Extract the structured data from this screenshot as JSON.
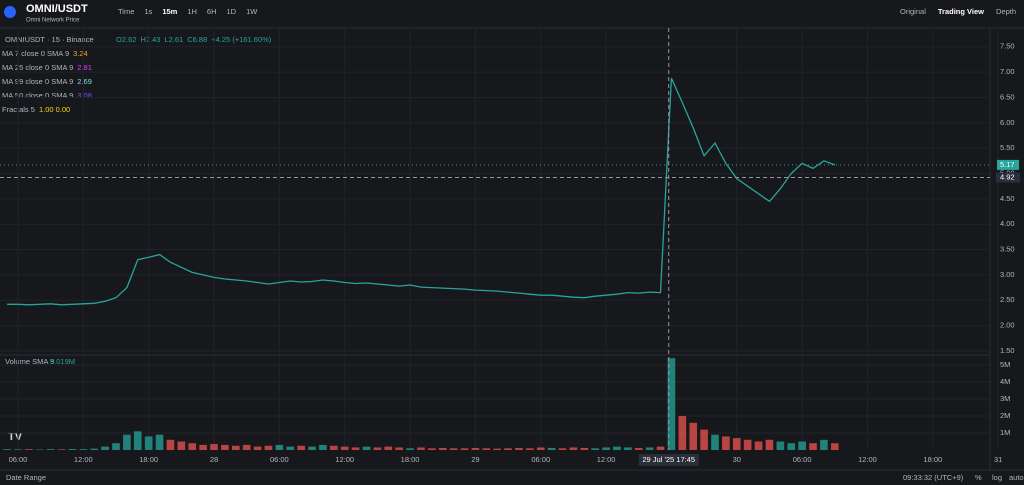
{
  "ui": {
    "pair": "OMNI/USDT",
    "subtitle": "Omni Network Price",
    "intervals": [
      "Time",
      "1s",
      "15m",
      "1H",
      "6H",
      "1D",
      "1W"
    ],
    "views": [
      "Original",
      "Trading View",
      "Depth"
    ],
    "legend": {
      "symbol": "OMNIUSDT · 15 · Binance",
      "ohlc": [
        "O2.62",
        "H7.43",
        "L2.61",
        "C6.88",
        "+4.25 (+161.60%)"
      ]
    },
    "indicators": [
      {
        "name": "MA 7 close 0 SMA 9",
        "value": 3.24,
        "color": "#f5a623"
      },
      {
        "name": "MA 25 close 0 SMA 9",
        "value": 2.81,
        "color": "#e040fb"
      },
      {
        "name": "MA 99 close 0 SMA 9",
        "value": 2.69,
        "color": "#80deea"
      },
      {
        "name": "MA 50 close 0 SMA 9",
        "value": 3.08,
        "color": "#7c4dff"
      },
      {
        "name": "Fractals 5",
        "value": "1.00 0.00",
        "color": "#f5d90a"
      }
    ],
    "volume_legend": {
      "name": "Volume SMA 9",
      "value": "5.019M"
    },
    "footer": {
      "date_range": "Date Range",
      "clock": "09:33:32 (UTC+9)",
      "options": [
        "%",
        "log",
        "auto"
      ]
    }
  },
  "chart_data": {
    "type": "line",
    "x": [
      5,
      6,
      7,
      8,
      9,
      10,
      11,
      12,
      13,
      14,
      15,
      16,
      17,
      18,
      19,
      20,
      21,
      22,
      23,
      24,
      25,
      26,
      27,
      28,
      29,
      30,
      31,
      32,
      33,
      34,
      35,
      36,
      37,
      38,
      39,
      40,
      41,
      42,
      43,
      44,
      45,
      46,
      47,
      48,
      49,
      50,
      51,
      52,
      53,
      54,
      55,
      56,
      57,
      58,
      59,
      60,
      61,
      62,
      63,
      64,
      65,
      66,
      67,
      68,
      69,
      70,
      71,
      72,
      73,
      74,
      75,
      76,
      77,
      78,
      79,
      80,
      81
    ],
    "series": [
      {
        "name": "Close",
        "color": "#26a69a",
        "values": [
          2.42,
          2.42,
          2.41,
          2.42,
          2.43,
          2.41,
          2.42,
          2.43,
          2.44,
          2.48,
          2.55,
          2.75,
          3.3,
          3.35,
          3.4,
          3.25,
          3.15,
          3.05,
          3.0,
          2.95,
          2.92,
          2.9,
          2.88,
          2.85,
          2.82,
          2.85,
          2.88,
          2.86,
          2.87,
          2.9,
          2.88,
          2.85,
          2.83,
          2.84,
          2.82,
          2.8,
          2.78,
          2.8,
          2.76,
          2.75,
          2.74,
          2.73,
          2.72,
          2.7,
          2.69,
          2.68,
          2.66,
          2.64,
          2.62,
          2.6,
          2.6,
          2.58,
          2.56,
          2.55,
          2.58,
          2.6,
          2.62,
          2.65,
          2.64,
          2.66,
          2.65,
          6.88,
          6.4,
          5.9,
          5.35,
          5.6,
          5.2,
          4.9,
          4.75,
          4.6,
          4.45,
          4.7,
          5.0,
          5.2,
          5.1,
          5.25,
          5.17
        ]
      },
      {
        "name": "Volume",
        "color": "#26a69a",
        "values": [
          0.05,
          0.04,
          0.05,
          0.03,
          0.05,
          0.04,
          0.06,
          0.05,
          0.08,
          0.2,
          0.4,
          0.9,
          1.1,
          0.8,
          0.9,
          0.6,
          0.5,
          0.4,
          0.3,
          0.35,
          0.3,
          0.25,
          0.3,
          0.2,
          0.25,
          0.3,
          0.2,
          0.25,
          0.2,
          0.3,
          0.25,
          0.2,
          0.15,
          0.2,
          0.15,
          0.2,
          0.15,
          0.1,
          0.15,
          0.1,
          0.12,
          0.1,
          0.1,
          0.12,
          0.1,
          0.08,
          0.1,
          0.12,
          0.1,
          0.15,
          0.12,
          0.1,
          0.15,
          0.12,
          0.1,
          0.15,
          0.2,
          0.15,
          0.12,
          0.15,
          0.2,
          5.4,
          2.0,
          1.6,
          1.2,
          0.9,
          0.8,
          0.7,
          0.6,
          0.5,
          0.6,
          0.5,
          0.4,
          0.5,
          0.4,
          0.6,
          0.4
        ]
      }
    ],
    "xlim": [
      4.35,
      95.25
    ],
    "xticks": [
      {
        "value": 6,
        "label": "06:00"
      },
      {
        "value": 12,
        "label": "12:00"
      },
      {
        "value": 18,
        "label": "18:00"
      },
      {
        "value": 24,
        "label": "28"
      },
      {
        "value": 30,
        "label": "06:00"
      },
      {
        "value": 36,
        "label": "12:00"
      },
      {
        "value": 42,
        "label": "18:00"
      },
      {
        "value": 48,
        "label": "29"
      },
      {
        "value": 54,
        "label": "06:00"
      },
      {
        "value": 60,
        "label": "12:00"
      },
      {
        "value": 72,
        "label": "30"
      },
      {
        "value": 78,
        "label": "06:00"
      },
      {
        "value": 84,
        "label": "12:00"
      },
      {
        "value": 90,
        "label": "18:00"
      },
      {
        "value": 96,
        "label": "31"
      }
    ],
    "ylim": [
      1.42,
      7.87
    ],
    "yticks": [
      {
        "value": 7.5,
        "label": "7.50"
      },
      {
        "value": 7,
        "label": "7.00"
      },
      {
        "value": 6.5,
        "label": "6.50"
      },
      {
        "value": 6,
        "label": "6.00"
      },
      {
        "value": 5.5,
        "label": "5.50"
      },
      {
        "value": 5,
        "label": "5.00"
      },
      {
        "value": 4.5,
        "label": "4.50"
      },
      {
        "value": 4,
        "label": "4.00"
      },
      {
        "value": 3.5,
        "label": "3.50"
      },
      {
        "value": 3,
        "label": "3.00"
      },
      {
        "value": 2.5,
        "label": "2.50"
      },
      {
        "value": 2,
        "label": "2.00"
      },
      {
        "value": 1.5,
        "label": "1.50"
      }
    ],
    "y2lim": [
      0,
      5.5
    ],
    "y2ticks": [
      {
        "value": 5,
        "label": "5M"
      },
      {
        "value": 4,
        "label": "4M"
      },
      {
        "value": 3,
        "label": "3M"
      },
      {
        "value": 2,
        "label": "2M"
      },
      {
        "value": 1,
        "label": "1M"
      }
    ],
    "last_price": {
      "value": 5.17,
      "label": "5.17"
    },
    "crosshair": {
      "y": {
        "value": 4.92,
        "label": "4.92"
      },
      "x": {
        "value": 65.75,
        "label": "29 Jul '25 17:45"
      }
    }
  }
}
